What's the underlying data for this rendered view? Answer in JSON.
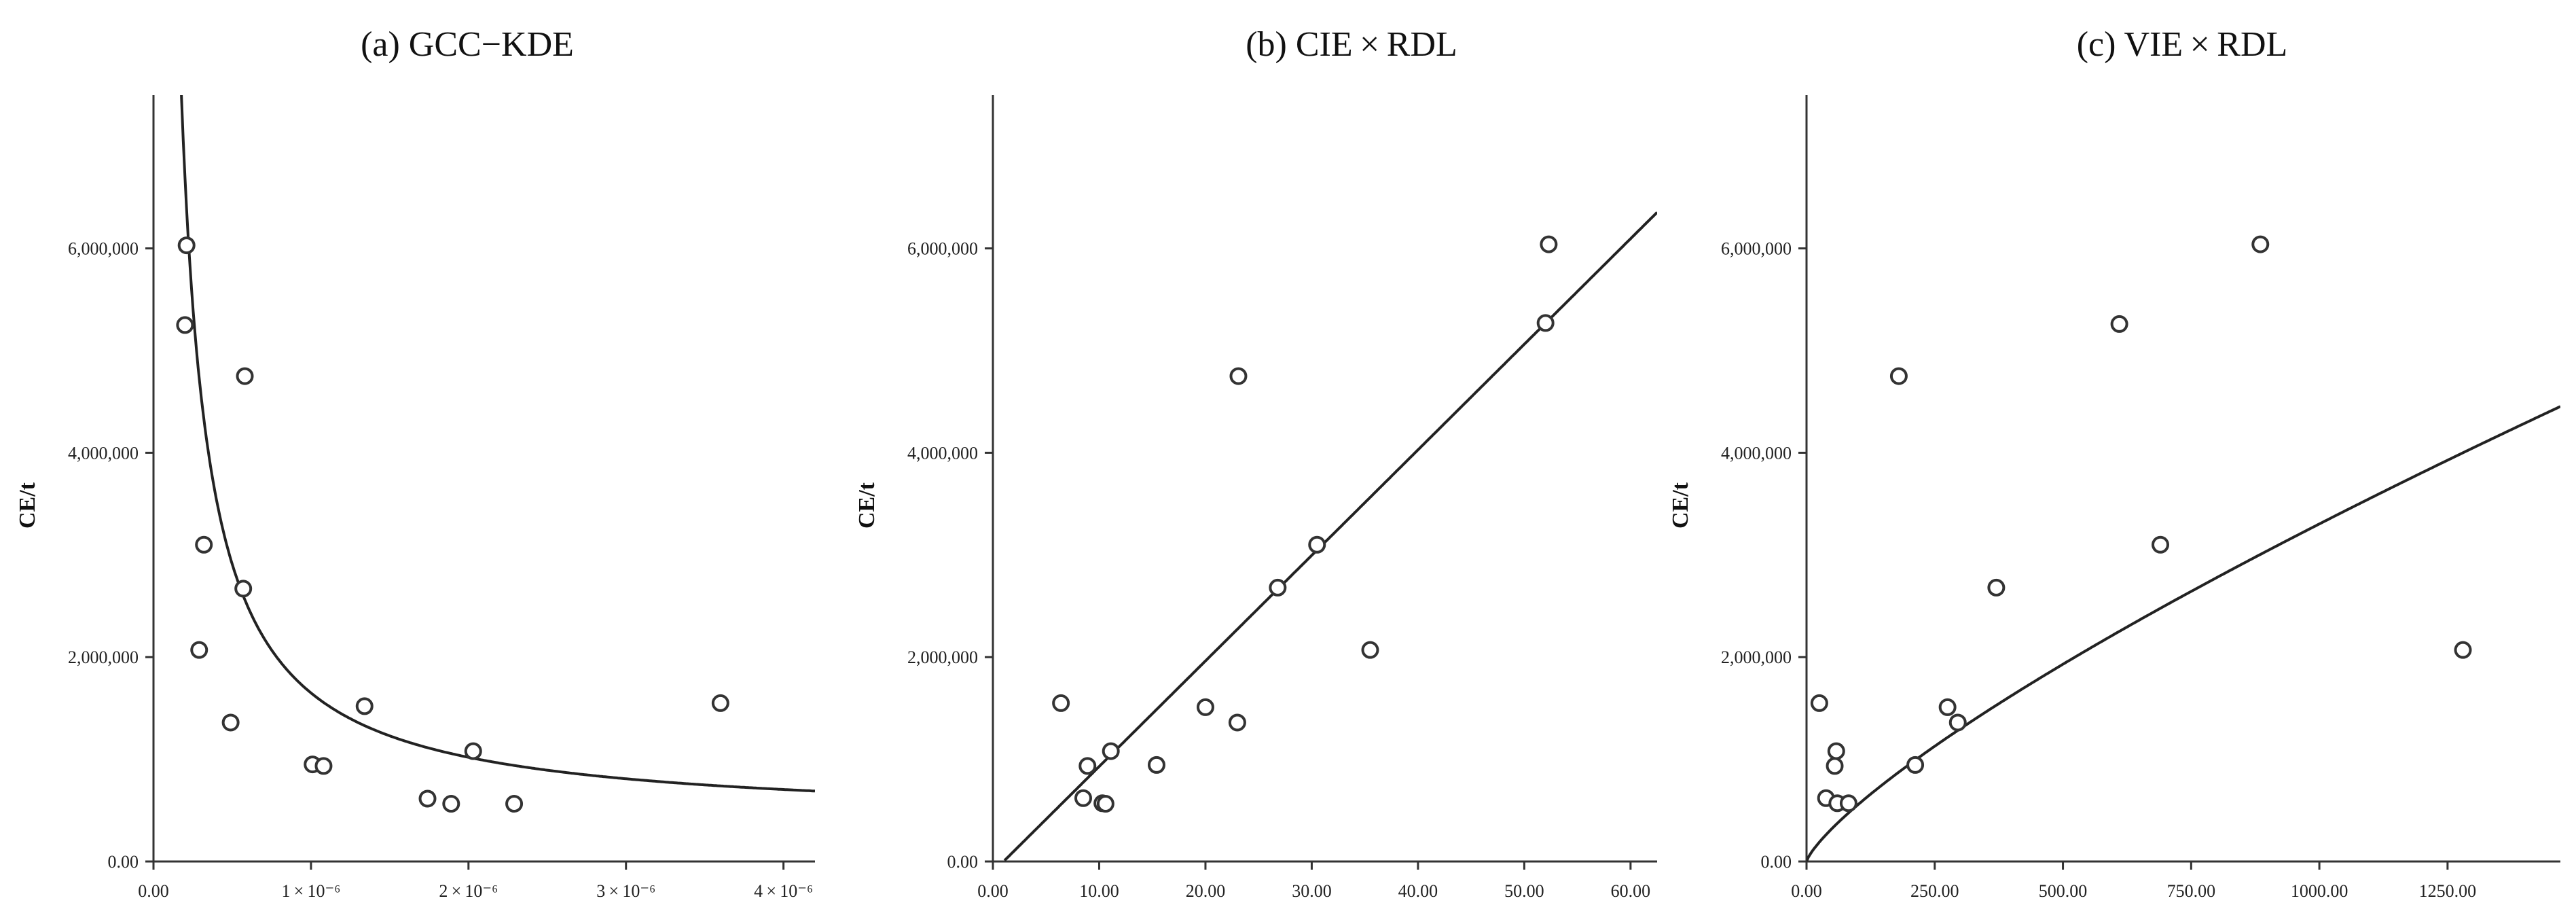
{
  "chart_data": [
    {
      "type": "scatter",
      "title": "(a) GCC−KDE",
      "ylabel": "CE/t",
      "xlabel": "",
      "xlim": [
        0,
        4.2e-06
      ],
      "ylim": [
        0,
        7500000
      ],
      "x_ticks": [
        0,
        1e-06,
        2e-06,
        3e-06,
        4e-06
      ],
      "x_tick_labels": [
        "0.00",
        "1 × 10⁻⁶",
        "2 × 10⁻⁶",
        "3 × 10⁻⁶",
        "4 × 10⁻⁶"
      ],
      "y_ticks": [
        0,
        2000000,
        4000000,
        6000000
      ],
      "y_tick_labels": [
        "0.00",
        "2,000,000",
        "4,000,000",
        "6,000,000"
      ],
      "grid": false,
      "points": [
        {
          "x": 2.1e-07,
          "y": 6030000
        },
        {
          "x": 2e-07,
          "y": 5250000
        },
        {
          "x": 5.8e-07,
          "y": 4750000
        },
        {
          "x": 3.2e-07,
          "y": 3100000
        },
        {
          "x": 5.7e-07,
          "y": 2670000
        },
        {
          "x": 2.9e-07,
          "y": 2070000
        },
        {
          "x": 4.9e-07,
          "y": 1360000
        },
        {
          "x": 1.34e-06,
          "y": 1520000
        },
        {
          "x": 3.6e-06,
          "y": 1550000
        },
        {
          "x": 2.03e-06,
          "y": 1080000
        },
        {
          "x": 1.01e-06,
          "y": 950000
        },
        {
          "x": 1.08e-06,
          "y": 935000
        },
        {
          "x": 1.74e-06,
          "y": 615000
        },
        {
          "x": 1.89e-06,
          "y": 565000
        },
        {
          "x": 2.29e-06,
          "y": 565000
        }
      ],
      "fit": {
        "model": "inverse",
        "a": 389600,
        "b": 1.26
      }
    },
    {
      "type": "scatter",
      "title": "(b) CIE × RDL",
      "ylabel": "CE/t",
      "xlabel": "",
      "xlim": [
        0,
        62.5
      ],
      "ylim": [
        0,
        7500000
      ],
      "x_ticks": [
        0,
        10,
        20,
        30,
        40,
        50,
        60
      ],
      "x_tick_labels": [
        "0.00",
        "10.00",
        "20.00",
        "30.00",
        "40.00",
        "50.00",
        "60.00"
      ],
      "y_ticks": [
        0,
        2000000,
        4000000,
        6000000
      ],
      "y_tick_labels": [
        "0.00",
        "2,000,000",
        "4,000,000",
        "6,000,000"
      ],
      "grid": false,
      "points": [
        {
          "x": 52.3,
          "y": 6040000
        },
        {
          "x": 52.0,
          "y": 5270000
        },
        {
          "x": 23.1,
          "y": 4750000
        },
        {
          "x": 30.5,
          "y": 3100000
        },
        {
          "x": 26.8,
          "y": 2680000
        },
        {
          "x": 35.5,
          "y": 2070000
        },
        {
          "x": 6.4,
          "y": 1550000
        },
        {
          "x": 20.0,
          "y": 1510000
        },
        {
          "x": 23.0,
          "y": 1360000
        },
        {
          "x": 11.1,
          "y": 1080000
        },
        {
          "x": 8.9,
          "y": 935000
        },
        {
          "x": 15.4,
          "y": 945000
        },
        {
          "x": 8.5,
          "y": 620000
        },
        {
          "x": 10.3,
          "y": 570000
        },
        {
          "x": 10.6,
          "y": 565000
        }
      ],
      "fit": {
        "model": "linear",
        "x0": 1.0,
        "slope": 103300
      }
    },
    {
      "type": "scatter",
      "title": "(c) VIE × RDL",
      "ylabel": "CE/t",
      "xlabel": "",
      "xlim": [
        0,
        1470
      ],
      "ylim": [
        0,
        7500000
      ],
      "x_ticks": [
        0,
        250,
        500,
        750,
        1000,
        1250
      ],
      "x_tick_labels": [
        "0.00",
        "250.00",
        "500.00",
        "750.00",
        "1000.00",
        "1250.00"
      ],
      "y_ticks": [
        0,
        2000000,
        4000000,
        6000000
      ],
      "y_tick_labels": [
        "0.00",
        "2,000,000",
        "4,000,000",
        "6,000,000"
      ],
      "grid": false,
      "points": [
        {
          "x": 885,
          "y": 6040000
        },
        {
          "x": 610,
          "y": 5260000
        },
        {
          "x": 180,
          "y": 4750000
        },
        {
          "x": 690,
          "y": 3100000
        },
        {
          "x": 370,
          "y": 2680000
        },
        {
          "x": 1280,
          "y": 2070000
        },
        {
          "x": 25,
          "y": 1550000
        },
        {
          "x": 275,
          "y": 1510000
        },
        {
          "x": 295,
          "y": 1360000
        },
        {
          "x": 58,
          "y": 1080000
        },
        {
          "x": 55,
          "y": 935000
        },
        {
          "x": 212,
          "y": 945000
        },
        {
          "x": 38,
          "y": 620000
        },
        {
          "x": 60,
          "y": 570000
        },
        {
          "x": 82,
          "y": 570000
        }
      ],
      "fit": {
        "model": "power",
        "a": 15630,
        "b": 0.775
      }
    }
  ]
}
